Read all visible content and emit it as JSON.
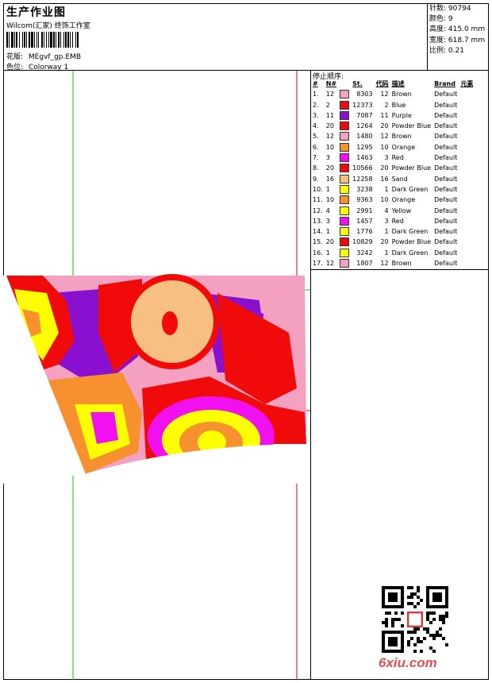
{
  "header": {
    "title": "生产作业图",
    "studio": "Wilcom(汇家) 终饰工作室",
    "design_label": "花版:",
    "design_value": "MEgvf_gp.EMB",
    "colorway_label": "色位:",
    "colorway_value": "Colorway 1"
  },
  "specs": [
    {
      "label": "针数:",
      "value": "90794"
    },
    {
      "label": "颜色:",
      "value": "9"
    },
    {
      "label": "高度:",
      "value": "415.0 mm"
    },
    {
      "label": "宽度:",
      "value": "618.7 mm"
    },
    {
      "label": "比例:",
      "value": "0.21"
    }
  ],
  "stops": {
    "title": "停止顺序:",
    "columns": [
      "#",
      "N#",
      "St.",
      "代码",
      "描述",
      "Brand",
      "元素"
    ],
    "rows": [
      {
        "idx": "1.",
        "n": "12",
        "color": "#f4a0c0",
        "st": "8303",
        "code": "12",
        "desc": "Brown",
        "brand": "Default"
      },
      {
        "idx": "2.",
        "n": "2",
        "color": "#e81010",
        "st": "12373",
        "code": "2",
        "desc": "Blue",
        "brand": "Default"
      },
      {
        "idx": "3.",
        "n": "11",
        "color": "#8a10d0",
        "st": "7087",
        "code": "11",
        "desc": "Purple",
        "brand": "Default"
      },
      {
        "idx": "4.",
        "n": "20",
        "color": "#f00a0a",
        "st": "1264",
        "code": "20",
        "desc": "Powder Blue",
        "brand": "Default"
      },
      {
        "idx": "5.",
        "n": "12",
        "color": "#f4a0c0",
        "st": "1480",
        "code": "12",
        "desc": "Brown",
        "brand": "Default"
      },
      {
        "idx": "6.",
        "n": "10",
        "color": "#f7902f",
        "st": "1295",
        "code": "10",
        "desc": "Orange",
        "brand": "Default"
      },
      {
        "idx": "7.",
        "n": "3",
        "color": "#f010f0",
        "st": "1463",
        "code": "3",
        "desc": "Red",
        "brand": "Default"
      },
      {
        "idx": "8.",
        "n": "20",
        "color": "#f00a0a",
        "st": "10566",
        "code": "20",
        "desc": "Powder Blue",
        "brand": "Default"
      },
      {
        "idx": "9.",
        "n": "16",
        "color": "#f8c080",
        "st": "12258",
        "code": "16",
        "desc": "Sand",
        "brand": "Default"
      },
      {
        "idx": "10.",
        "n": "1",
        "color": "#ffff00",
        "st": "3238",
        "code": "1",
        "desc": "Dark Green",
        "brand": "Default"
      },
      {
        "idx": "11.",
        "n": "10",
        "color": "#f7902f",
        "st": "9363",
        "code": "10",
        "desc": "Orange",
        "brand": "Default"
      },
      {
        "idx": "12.",
        "n": "4",
        "color": "#ffff00",
        "st": "2991",
        "code": "4",
        "desc": "Yellow",
        "brand": "Default"
      },
      {
        "idx": "13.",
        "n": "3",
        "color": "#f010f0",
        "st": "1457",
        "code": "3",
        "desc": "Red",
        "brand": "Default"
      },
      {
        "idx": "14.",
        "n": "1",
        "color": "#ffff00",
        "st": "1776",
        "code": "1",
        "desc": "Dark Green",
        "brand": "Default"
      },
      {
        "idx": "15.",
        "n": "20",
        "color": "#f00a0a",
        "st": "10829",
        "code": "20",
        "desc": "Powder Blue",
        "brand": "Default"
      },
      {
        "idx": "16.",
        "n": "1",
        "color": "#ffff00",
        "st": "3242",
        "code": "1",
        "desc": "Dark Green",
        "brand": "Default"
      },
      {
        "idx": "17.",
        "n": "12",
        "color": "#f4a0c0",
        "st": "1807",
        "code": "12",
        "desc": "Brown",
        "brand": "Default"
      }
    ]
  },
  "watermark": "6xiu.com"
}
